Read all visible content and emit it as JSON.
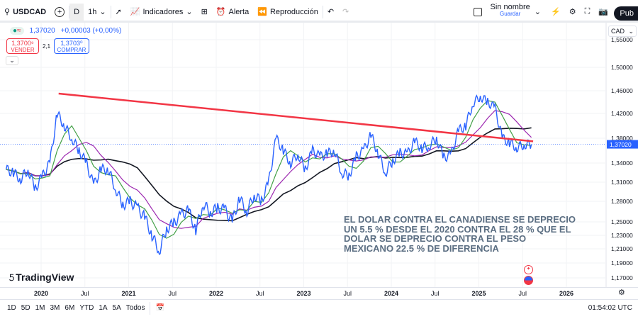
{
  "toolbar": {
    "symbol": "USDCAD",
    "interval_d": "D",
    "interval": "1h",
    "indicators": "Indicadores",
    "alert": "Alerta",
    "replay": "Reproducción",
    "layout_name": "Sin nombre",
    "save": "Guardar",
    "publish": "Pub"
  },
  "legend": {
    "price": "1,37020",
    "change": "+0,00003 (+0,00%)",
    "sell_price": "1,3700⁹",
    "sell_label": "VENDER",
    "spread": "2,1",
    "buy_price": "1,3703⁰",
    "buy_label": "COMPRAR"
  },
  "currency": "CAD",
  "last_price_label": "1,37020",
  "annotation": "EL DOLAR CONTRA EL CANADIENSE SE DEPRECIO UN 5.5 % DESDE EL 2020 CONTRA EL 28 % QUE EL DOLAR SE DEPRECIO CONTRA EL PESO MEXICANO 22.5 % DE DIFERENCIA",
  "logo": "TradingView",
  "ranges": [
    "1D",
    "5D",
    "1M",
    "3M",
    "6M",
    "YTD",
    "1A",
    "5A",
    "Todos"
  ],
  "clock": "01:54:02 UTC",
  "colors": {
    "price": "#2962ff",
    "trend": "#f23645",
    "ma_fast": "#43a047",
    "ma_mid": "#9c27b0",
    "ma_slow": "#131722"
  },
  "chart_data": {
    "type": "line",
    "title": "USDCAD",
    "y_ticks": [
      "1,55000",
      "1,50000",
      "1,46000",
      "1,42000",
      "1,38000",
      "1,34000",
      "1,31000",
      "1,28000",
      "1,25000",
      "1,23000",
      "1,21000",
      "1,19000",
      "1,17000"
    ],
    "y_tick_values": [
      1.55,
      1.5,
      1.46,
      1.42,
      1.38,
      1.34,
      1.31,
      1.28,
      1.25,
      1.23,
      1.21,
      1.19,
      1.17
    ],
    "x_ticks": [
      {
        "label": "2020",
        "t": 2020
      },
      {
        "label": "Jul",
        "t": 2020.5
      },
      {
        "label": "2021",
        "t": 2021
      },
      {
        "label": "Jul",
        "t": 2021.5
      },
      {
        "label": "2022",
        "t": 2022
      },
      {
        "label": "Jul",
        "t": 2022.5
      },
      {
        "label": "2023",
        "t": 2023
      },
      {
        "label": "Jul",
        "t": 2023.5
      },
      {
        "label": "2024",
        "t": 2024
      },
      {
        "label": "Jul",
        "t": 2024.5
      },
      {
        "label": "2025",
        "t": 2025
      },
      {
        "label": "Jul",
        "t": 2025.5
      },
      {
        "label": "2026",
        "t": 2026
      }
    ],
    "start": 2019.6,
    "step_months": 1,
    "series": [
      {
        "name": "USDCAD",
        "values": [
          1.33,
          1.325,
          1.315,
          1.33,
          1.3,
          1.32,
          1.34,
          1.42,
          1.4,
          1.38,
          1.36,
          1.34,
          1.305,
          1.33,
          1.33,
          1.3,
          1.275,
          1.28,
          1.27,
          1.257,
          1.23,
          1.207,
          1.24,
          1.248,
          1.26,
          1.267,
          1.238,
          1.277,
          1.264,
          1.27,
          1.268,
          1.25,
          1.285,
          1.265,
          1.29,
          1.28,
          1.31,
          1.38,
          1.36,
          1.34,
          1.355,
          1.33,
          1.36,
          1.35,
          1.355,
          1.36,
          1.325,
          1.32,
          1.35,
          1.36,
          1.385,
          1.356,
          1.325,
          1.344,
          1.356,
          1.354,
          1.375,
          1.364,
          1.368,
          1.38,
          1.349,
          1.353,
          1.392,
          1.4,
          1.438,
          1.45,
          1.44,
          1.43,
          1.38,
          1.373,
          1.365,
          1.37,
          1.3702
        ]
      }
    ],
    "trendline": {
      "from": [
        2020.2,
        1.455
      ],
      "to": [
        2025.62,
        1.375
      ]
    },
    "last_price": 1.3702
  }
}
